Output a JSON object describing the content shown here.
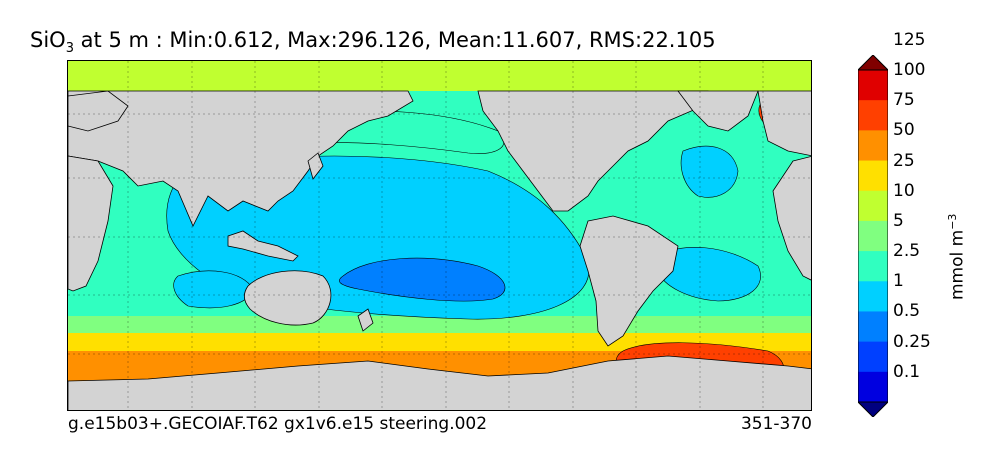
{
  "title": {
    "variable": "SiO",
    "subscript": "3",
    "rest": " at 5 m : Min:0.612, Max:296.126, Mean:11.607, RMS:22.105"
  },
  "footer": {
    "left": "g.e15b03+.GECOIAF.T62 gx1v6.e15 steering.002",
    "right": "351-370"
  },
  "colorbar": {
    "units_base": "mmol m",
    "units_exp": "−3",
    "levels": [
      "0.1",
      "0.25",
      "0.5",
      "1",
      "2.5",
      "5",
      "10",
      "25",
      "50",
      "75",
      "100",
      "125"
    ],
    "colors": [
      "#00007f",
      "#0000e0",
      "#0040ff",
      "#0080ff",
      "#00d0ff",
      "#30ffc0",
      "#80ff80",
      "#c0ff30",
      "#ffe000",
      "#ff9000",
      "#ff4000",
      "#e00000",
      "#800000"
    ]
  },
  "map": {
    "land_color": "#d3d3d3",
    "ocean_colors": {
      "arctic": "#c0ff30",
      "high_nh": "#30ffc0",
      "subtropical_gyre": "#00d0ff",
      "south_pacific_core": "#0080ff",
      "southern_ocean_outer": "#80ff80",
      "southern_ocean_mid": "#ffe000",
      "southern_ocean_inner": "#ff9000",
      "weddell": "#ff4000"
    }
  }
}
